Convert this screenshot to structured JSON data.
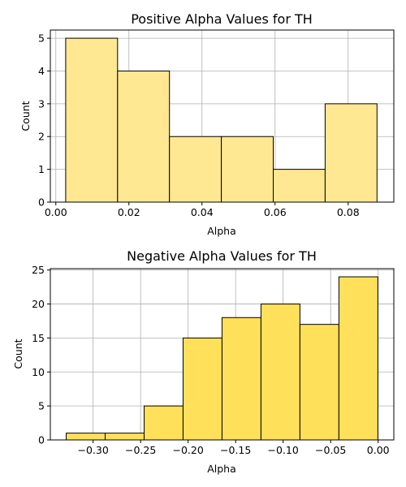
{
  "chart_data": [
    {
      "type": "bar",
      "title": "Positive Alpha Values for TH",
      "xlabel": "Alpha",
      "ylabel": "Count",
      "xlim": [
        -0.0015,
        0.0925
      ],
      "ylim": [
        0,
        5.25
      ],
      "xticks": [
        0.0,
        0.02,
        0.04,
        0.06,
        0.08
      ],
      "xtick_labels": [
        "0.00",
        "0.02",
        "0.04",
        "0.06",
        "0.08"
      ],
      "yticks": [
        0,
        1,
        2,
        3,
        4,
        5
      ],
      "ytick_labels": [
        "0",
        "1",
        "2",
        "3",
        "4",
        "5"
      ],
      "grid": true,
      "color": "#ffe891",
      "bins": [
        {
          "x0": 0.0027,
          "x1": 0.0169,
          "count": 5
        },
        {
          "x0": 0.0169,
          "x1": 0.0311,
          "count": 4
        },
        {
          "x0": 0.0311,
          "x1": 0.0453,
          "count": 2
        },
        {
          "x0": 0.0453,
          "x1": 0.0595,
          "count": 2
        },
        {
          "x0": 0.0595,
          "x1": 0.0737,
          "count": 1
        },
        {
          "x0": 0.0737,
          "x1": 0.0879,
          "count": 3
        }
      ]
    },
    {
      "type": "bar",
      "title": "Negative Alpha Values for TH",
      "xlabel": "Alpha",
      "ylabel": "Count",
      "xlim": [
        -0.345,
        0.0165
      ],
      "ylim": [
        0,
        25.2
      ],
      "xticks": [
        -0.3,
        -0.25,
        -0.2,
        -0.15,
        -0.1,
        -0.05,
        0.0
      ],
      "xtick_labels": [
        "−0.30",
        "−0.25",
        "−0.20",
        "−0.15",
        "−0.10",
        "−0.05",
        "0.00"
      ],
      "yticks": [
        0,
        5,
        10,
        15,
        20,
        25
      ],
      "ytick_labels": [
        "0",
        "5",
        "10",
        "15",
        "20",
        "25"
      ],
      "grid": true,
      "color": "#ffe05a",
      "bins": [
        {
          "x0": -0.3283,
          "x1": -0.2873,
          "count": 1
        },
        {
          "x0": -0.2873,
          "x1": -0.2463,
          "count": 1
        },
        {
          "x0": -0.2463,
          "x1": -0.2053,
          "count": 5
        },
        {
          "x0": -0.2053,
          "x1": -0.1643,
          "count": 15
        },
        {
          "x0": -0.1643,
          "x1": -0.1233,
          "count": 18
        },
        {
          "x0": -0.1233,
          "x1": -0.0823,
          "count": 20
        },
        {
          "x0": -0.0823,
          "x1": -0.0413,
          "count": 17
        },
        {
          "x0": -0.0413,
          "x1": -0.0003,
          "count": 24
        }
      ]
    }
  ]
}
